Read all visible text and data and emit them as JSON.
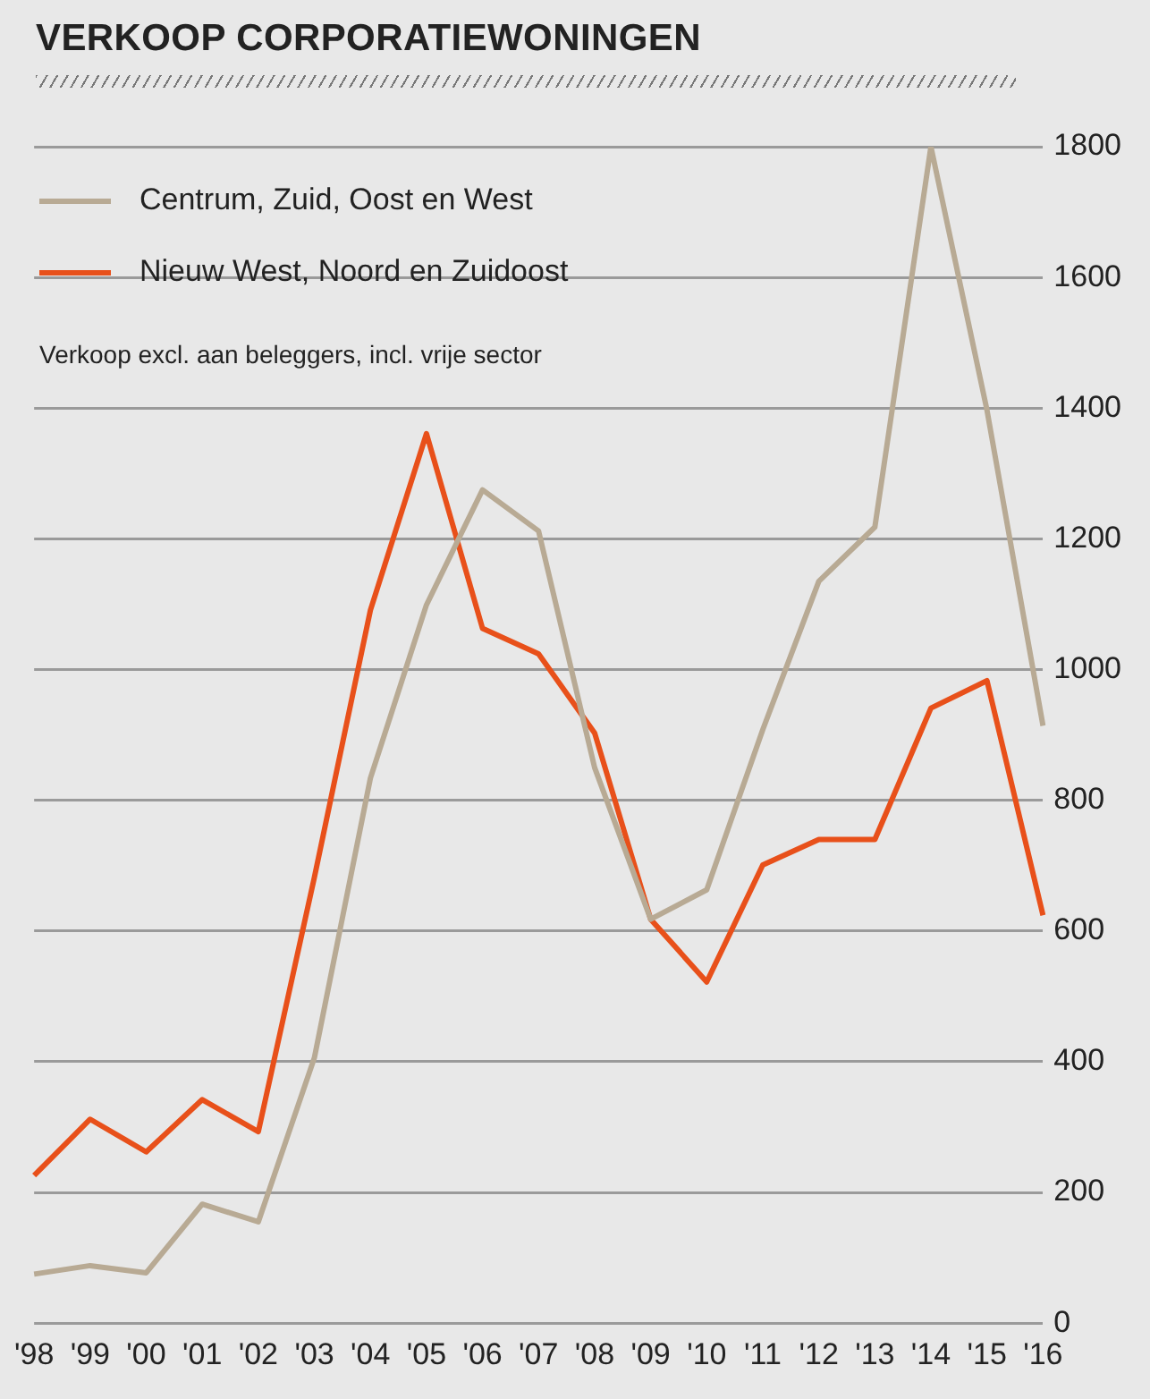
{
  "chart_data": {
    "type": "line",
    "title": "VERKOOP CORPORATIEWONINGEN",
    "annotations": [
      "Verkoop excl. aan beleggers, incl. vrije sector"
    ],
    "categories": [
      "'98",
      "'99",
      "'00",
      "'01",
      "'02",
      "'03",
      "'04",
      "'05",
      "'06",
      "'07",
      "'08",
      "'09",
      "'10",
      "'11",
      "'12",
      "'13",
      "'14",
      "'15",
      "'16"
    ],
    "series": [
      {
        "name": "Centrum, Zuid, Oost en West",
        "color": "#b8aa94",
        "values": [
          75,
          88,
          77,
          182,
          155,
          406,
          834,
          1099,
          1275,
          1212,
          850,
          618,
          663,
          908,
          1135,
          1218,
          1800,
          1397,
          914
        ]
      },
      {
        "name": "Nieuw West, Noord en Zuidoost",
        "color": "#e8501a",
        "values": [
          226,
          312,
          262,
          342,
          293,
          682,
          1091,
          1361,
          1063,
          1024,
          903,
          618,
          522,
          701,
          740,
          740,
          941,
          983,
          624
        ]
      }
    ],
    "ylim": [
      0,
      1800
    ],
    "yticks": [
      0,
      200,
      400,
      600,
      800,
      1000,
      1200,
      1400,
      1600,
      1800
    ],
    "grid": "y",
    "legend": "top left",
    "marker": "none",
    "line_style": "solid"
  }
}
